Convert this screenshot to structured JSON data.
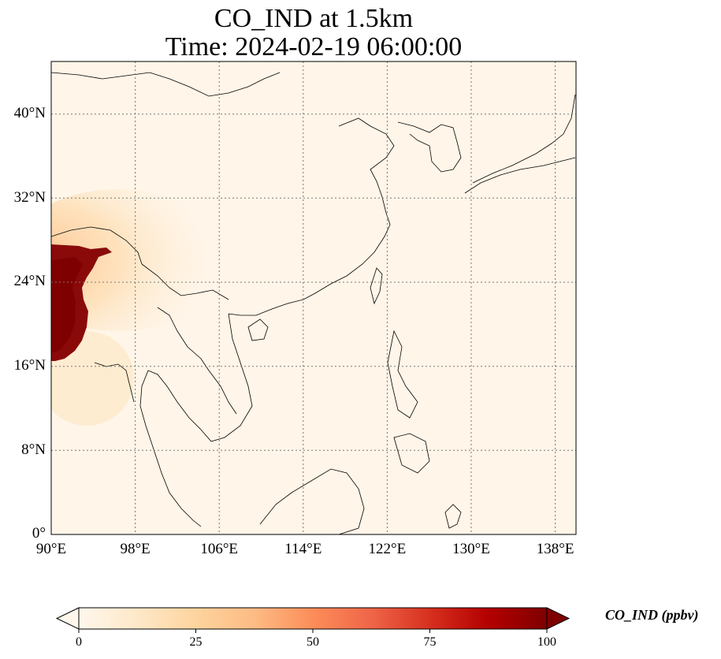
{
  "title": {
    "line1": "CO_IND at 1.5km",
    "line2": "Time: 2024-02-19 06:00:00"
  },
  "map": {
    "projection": "PlateCarree",
    "lon_range": [
      90,
      140
    ],
    "lat_range": [
      0,
      45
    ],
    "gridlines": "dotted",
    "x_ticks": [
      "90°E",
      "98°E",
      "106°E",
      "114°E",
      "122°E",
      "130°E",
      "138°E"
    ],
    "y_ticks": [
      "0°",
      "8°N",
      "16°N",
      "24°N",
      "32°N",
      "40°N"
    ],
    "field": "CO_IND",
    "colormap": "OrRd",
    "hotspot": {
      "lon_range": [
        90,
        95
      ],
      "lat_range": [
        16,
        28
      ],
      "value": "≥100"
    }
  },
  "colorbar": {
    "label": "CO_IND (ppbv)",
    "ticks": [
      "0",
      "25",
      "50",
      "75",
      "100"
    ],
    "range": [
      0,
      100
    ],
    "extend": "both",
    "colors": [
      "#fff7ec",
      "#fee8c8",
      "#fdd49e",
      "#fdbb84",
      "#fc8d59",
      "#ef6548",
      "#d7301f",
      "#b30000",
      "#7f0000"
    ]
  }
}
